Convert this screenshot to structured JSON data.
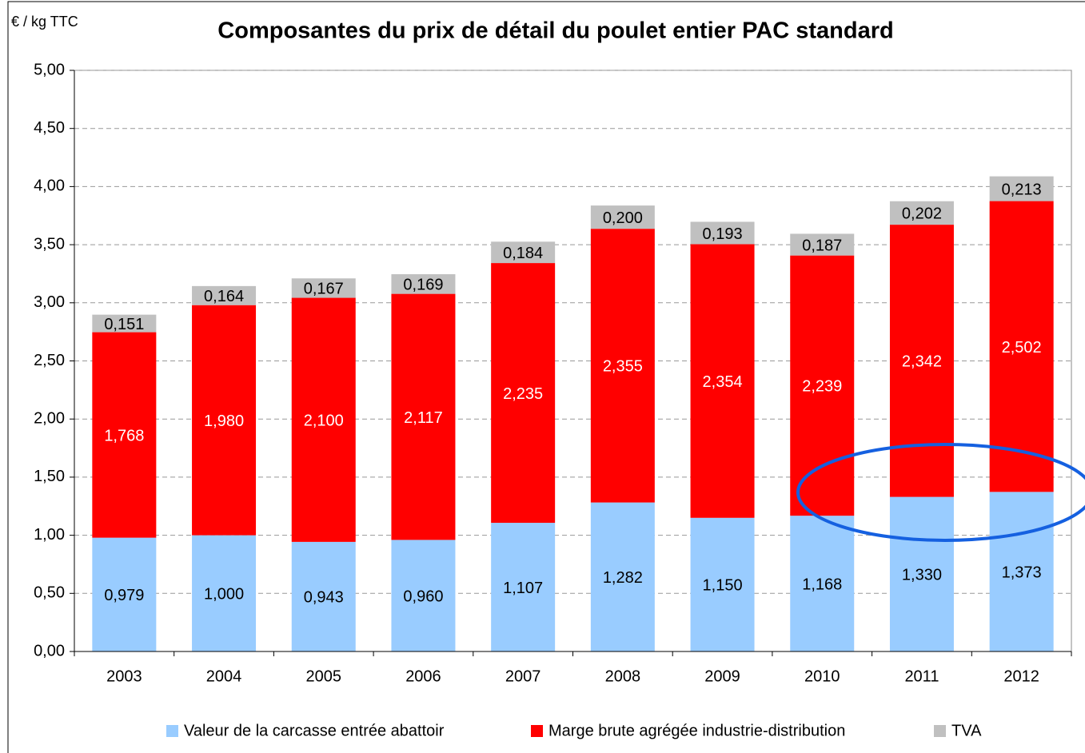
{
  "chart_data": {
    "type": "stacked_bar",
    "title": "Composantes du prix de détail du poulet entier PAC standard",
    "y_label": "€ / kg TTC",
    "categories": [
      "2003",
      "2004",
      "2005",
      "2006",
      "2007",
      "2008",
      "2009",
      "2010",
      "2011",
      "2012"
    ],
    "series": [
      {
        "name": "Valeur de la carcasse entrée abattoir",
        "color": "#99ccff",
        "label_color": "#000000",
        "values": [
          0.979,
          1.0,
          0.943,
          0.96,
          1.107,
          1.282,
          1.15,
          1.168,
          1.33,
          1.373
        ],
        "value_labels": [
          "0,979",
          "1,000",
          "0,943",
          "0,960",
          "1,107",
          "1,282",
          "1,150",
          "1,168",
          "1,330",
          "1,373"
        ]
      },
      {
        "name": "Marge brute agrégée industrie-distribution",
        "color": "#ff0000",
        "label_color": "#ffffff",
        "values": [
          1.768,
          1.98,
          2.1,
          2.117,
          2.235,
          2.355,
          2.354,
          2.239,
          2.342,
          2.502
        ],
        "value_labels": [
          "1,768",
          "1,980",
          "2,100",
          "2,117",
          "2,235",
          "2,355",
          "2,354",
          "2,239",
          "2,342",
          "2,502"
        ]
      },
      {
        "name": "TVA",
        "color": "#c0c0c0",
        "label_color": "#000000",
        "values": [
          0.151,
          0.164,
          0.167,
          0.169,
          0.184,
          0.2,
          0.193,
          0.187,
          0.202,
          0.213
        ],
        "value_labels": [
          "0,151",
          "0,164",
          "0,167",
          "0,169",
          "0,184",
          "0,200",
          "0,193",
          "0,187",
          "0,202",
          "0,213"
        ]
      }
    ],
    "ylim": [
      0,
      5
    ],
    "yticks": [
      {
        "value": 0,
        "label": "0,00"
      },
      {
        "value": 0.5,
        "label": "0,50"
      },
      {
        "value": 1,
        "label": "1,00"
      },
      {
        "value": 1.5,
        "label": "1,50"
      },
      {
        "value": 2,
        "label": "2,00"
      },
      {
        "value": 2.5,
        "label": "2,50"
      },
      {
        "value": 3,
        "label": "3,00"
      },
      {
        "value": 3.5,
        "label": "3,50"
      },
      {
        "value": 4,
        "label": "4,00"
      },
      {
        "value": 4.5,
        "label": "4,50"
      },
      {
        "value": 5,
        "label": "5,00"
      }
    ],
    "grid": true
  }
}
